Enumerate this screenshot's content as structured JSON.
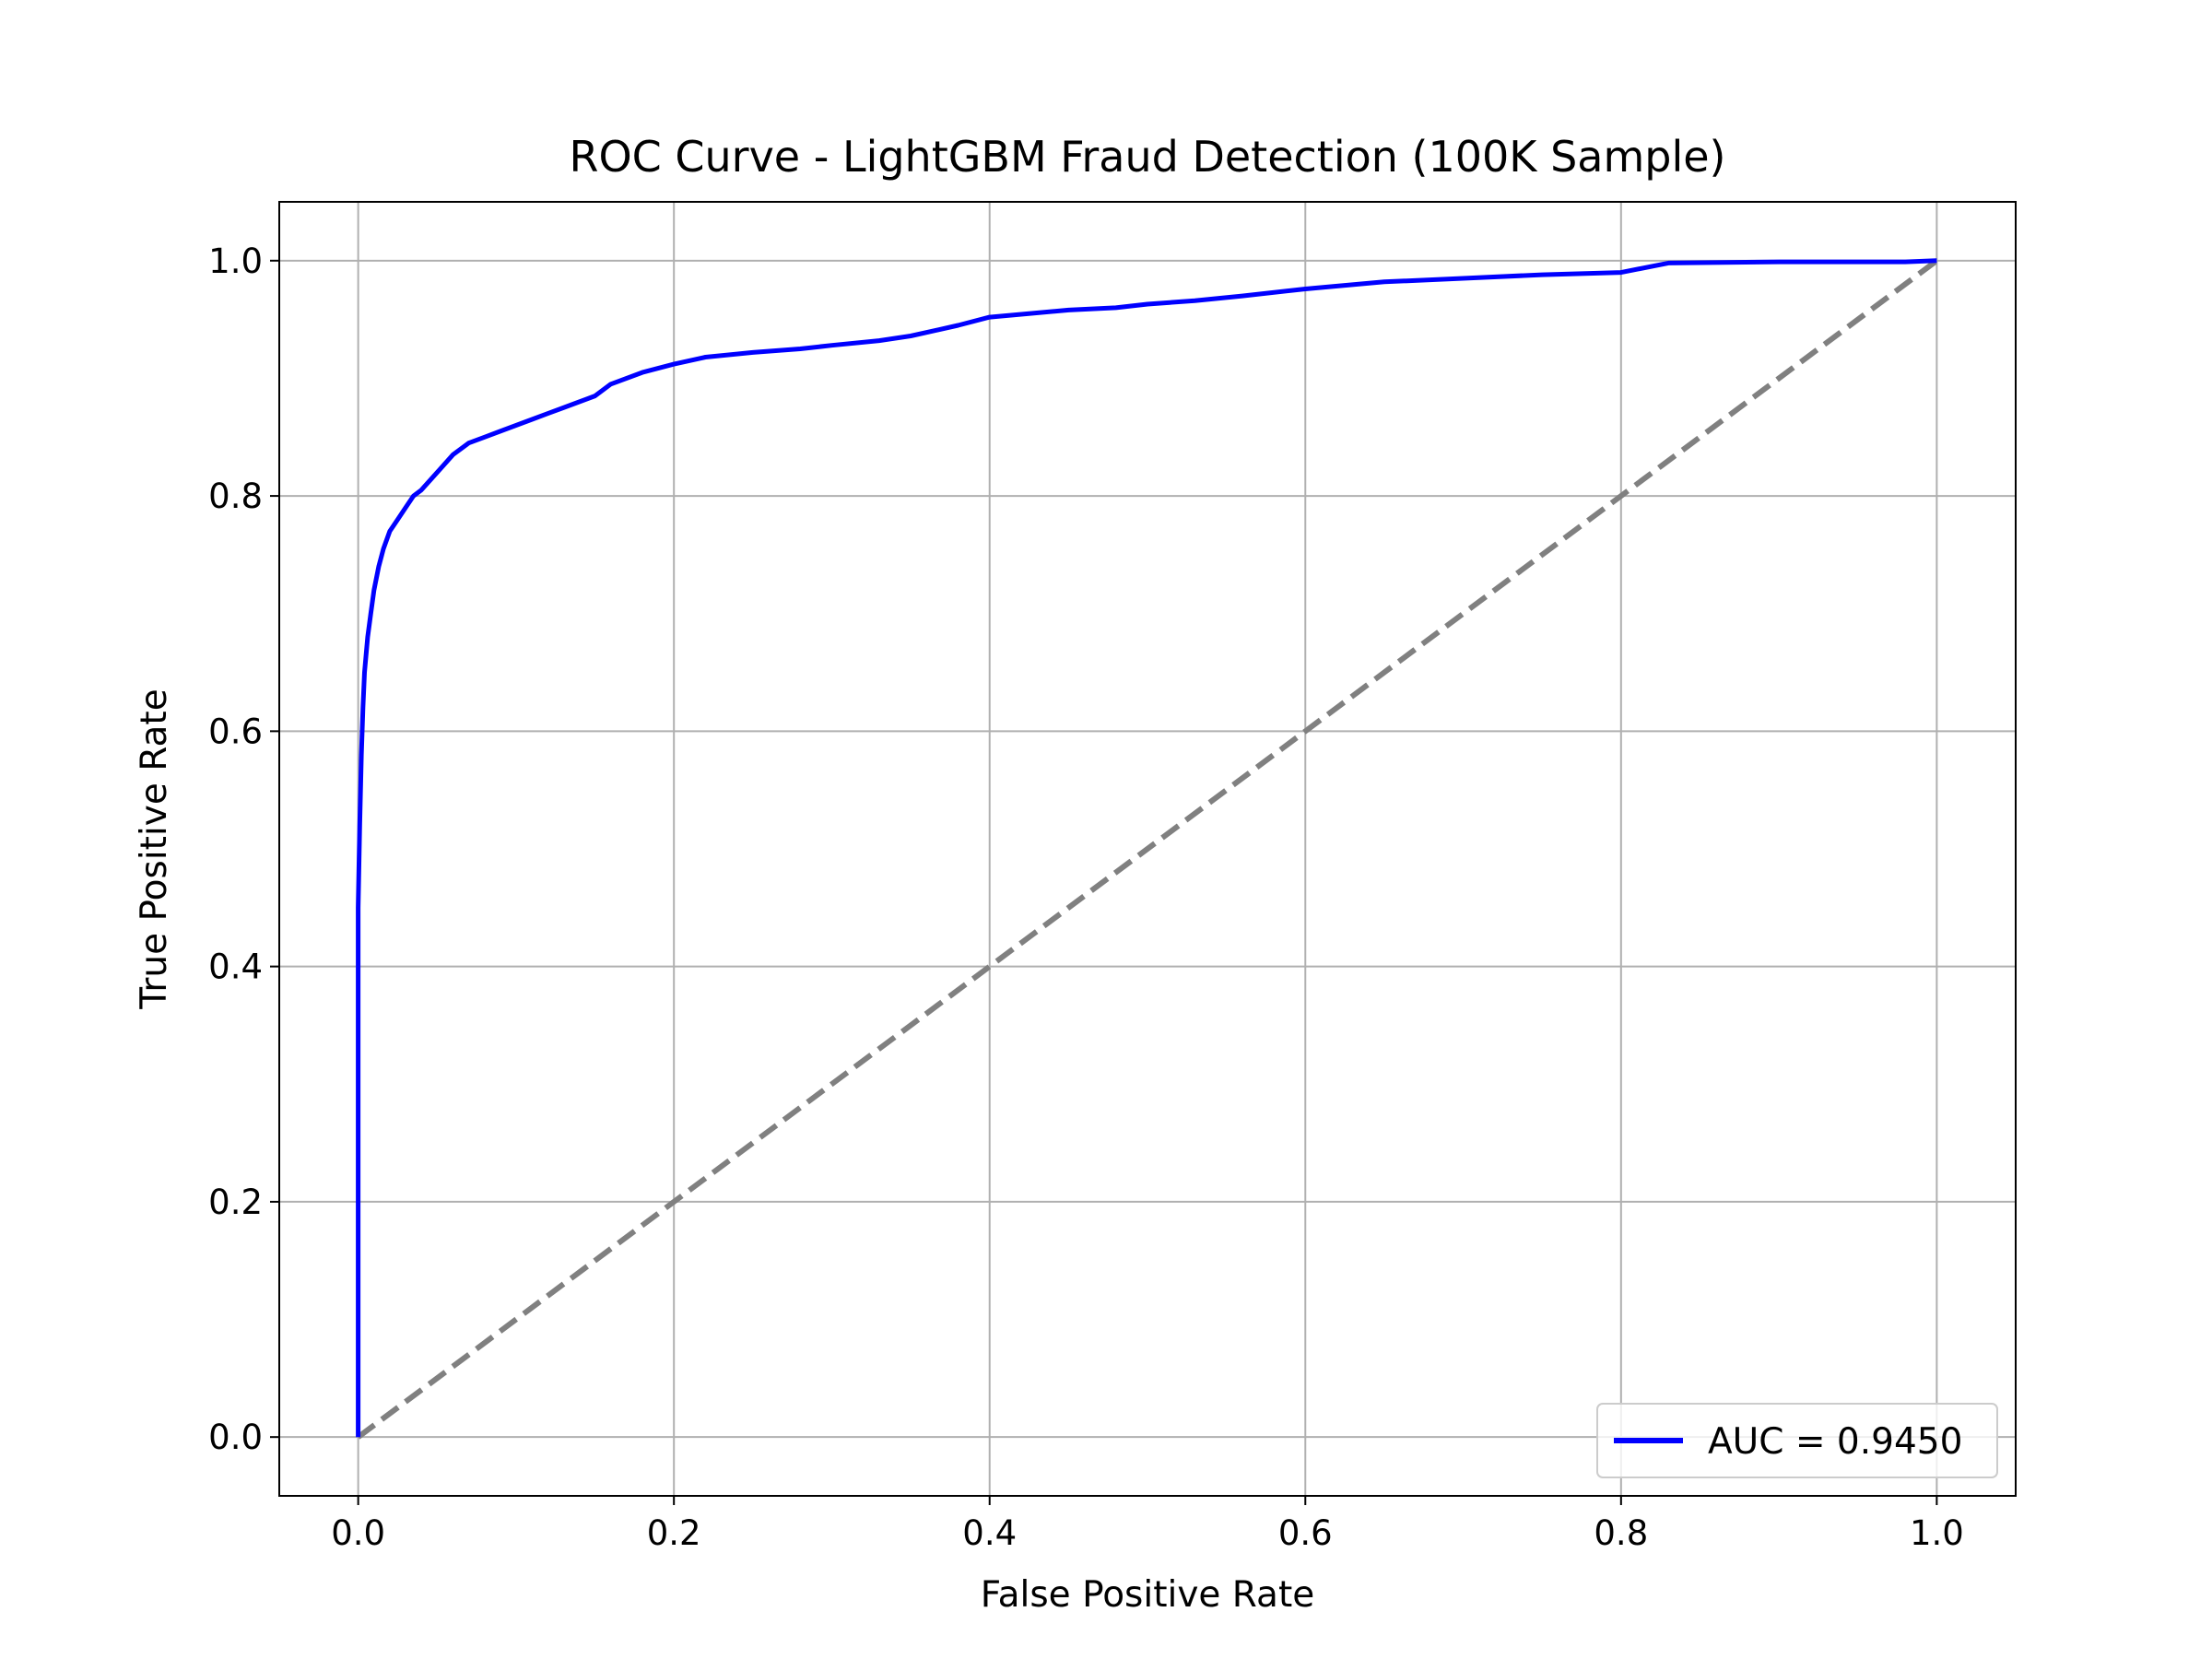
{
  "chart_data": {
    "type": "line",
    "title": "ROC Curve - LightGBM Fraud Detection (100K Sample)",
    "xlabel": "False Positive Rate",
    "ylabel": "True Positive Rate",
    "xlim": [
      -0.05,
      1.05
    ],
    "ylim": [
      -0.05,
      1.05
    ],
    "xticks": [
      0.0,
      0.2,
      0.4,
      0.6,
      0.8,
      1.0
    ],
    "yticks": [
      0.0,
      0.2,
      0.4,
      0.6,
      0.8,
      1.0
    ],
    "xtick_labels": [
      "0.0",
      "0.2",
      "0.4",
      "0.6",
      "0.8",
      "1.0"
    ],
    "ytick_labels": [
      "0.0",
      "0.2",
      "0.4",
      "0.6",
      "0.8",
      "1.0"
    ],
    "grid": true,
    "legend_position": "lower-right",
    "series": [
      {
        "name": "AUC = 0.9450",
        "color": "#0000ff",
        "style": "solid",
        "x": [
          0.0,
          0.0,
          0.001,
          0.002,
          0.003,
          0.004,
          0.006,
          0.008,
          0.01,
          0.013,
          0.016,
          0.02,
          0.025,
          0.03,
          0.035,
          0.04,
          0.05,
          0.06,
          0.07,
          0.08,
          0.09,
          0.1,
          0.11,
          0.12,
          0.13,
          0.14,
          0.15,
          0.16,
          0.18,
          0.2,
          0.22,
          0.25,
          0.28,
          0.3,
          0.33,
          0.35,
          0.38,
          0.4,
          0.45,
          0.48,
          0.5,
          0.53,
          0.56,
          0.6,
          0.65,
          0.7,
          0.75,
          0.8,
          0.83,
          0.9,
          0.98,
          1.0
        ],
        "y": [
          0.0,
          0.45,
          0.52,
          0.58,
          0.62,
          0.65,
          0.68,
          0.7,
          0.72,
          0.74,
          0.755,
          0.77,
          0.78,
          0.79,
          0.8,
          0.805,
          0.82,
          0.835,
          0.845,
          0.85,
          0.855,
          0.86,
          0.865,
          0.87,
          0.875,
          0.88,
          0.885,
          0.895,
          0.905,
          0.912,
          0.918,
          0.922,
          0.925,
          0.928,
          0.932,
          0.936,
          0.945,
          0.952,
          0.958,
          0.96,
          0.963,
          0.966,
          0.97,
          0.976,
          0.982,
          0.985,
          0.988,
          0.99,
          0.998,
          0.999,
          0.999,
          1.0
        ]
      },
      {
        "name": "",
        "color": "#808080",
        "style": "dashed",
        "x": [
          0.0,
          1.0
        ],
        "y": [
          0.0,
          1.0
        ]
      }
    ]
  }
}
